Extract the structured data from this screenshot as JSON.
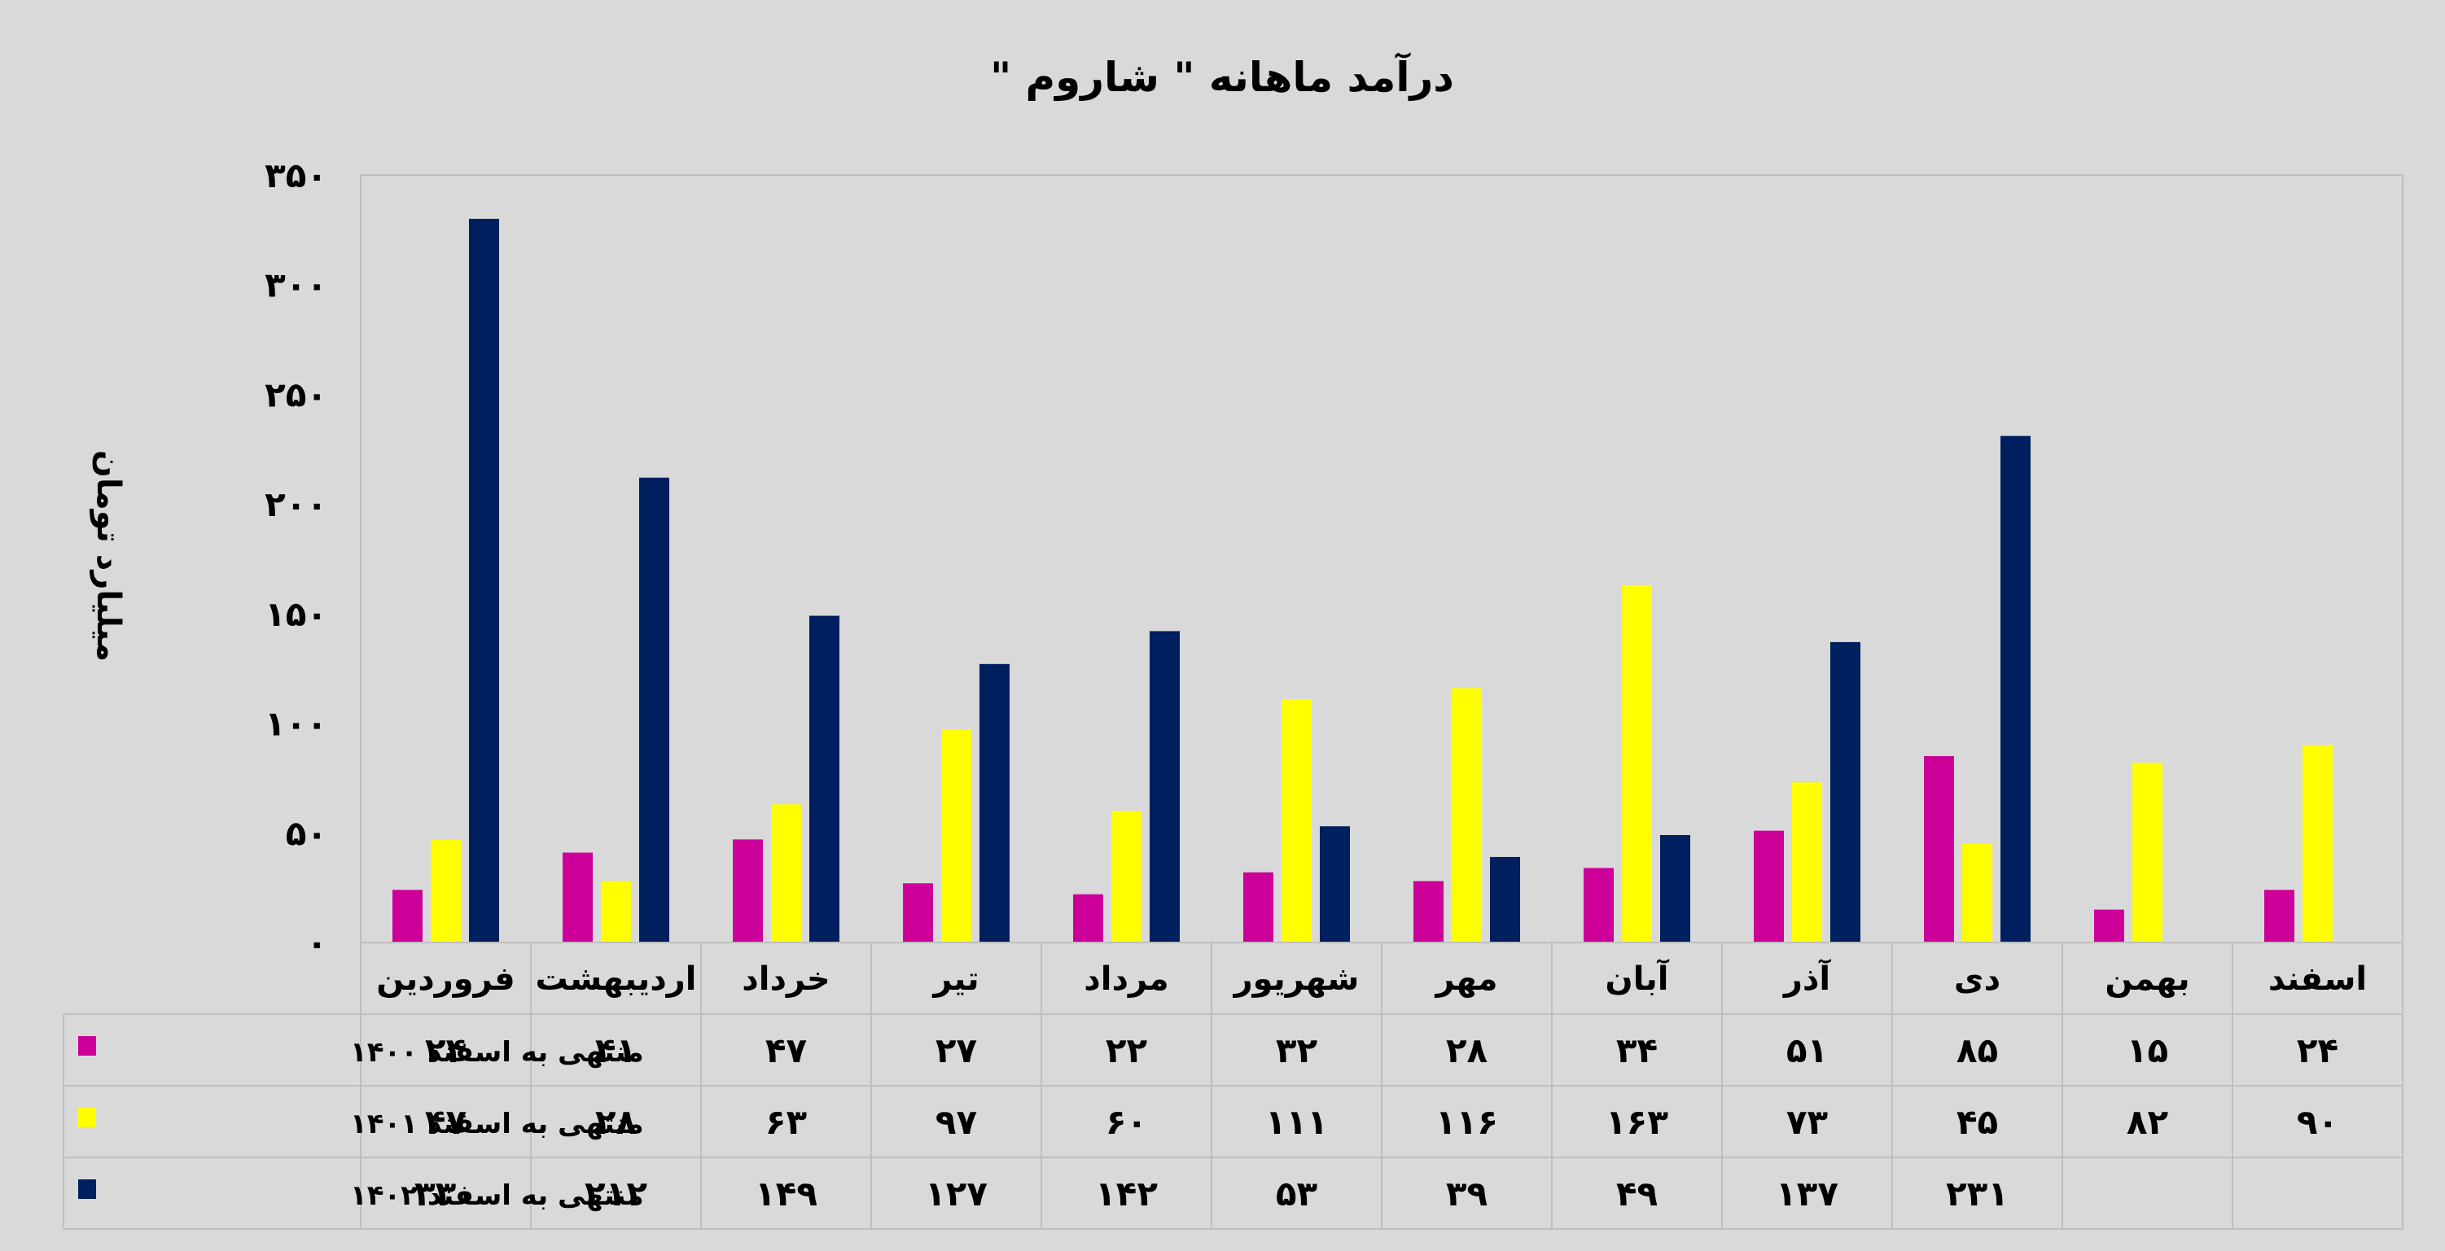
{
  "chart_data": {
    "type": "bar",
    "title": "درآمد ماهانه \" شاروم \"",
    "ylabel": "میلیارد تومان",
    "xlabel": "",
    "ylim": [
      0,
      350
    ],
    "yticks": [
      0,
      50,
      100,
      150,
      200,
      250,
      300,
      350
    ],
    "ytick_labels": [
      "۰",
      "۵۰",
      "۱۰۰",
      "۱۵۰",
      "۲۰۰",
      "۲۵۰",
      "۳۰۰",
      "۳۵۰"
    ],
    "grid": false,
    "legend_placement": "data-table-left",
    "categories": [
      "فروردین",
      "اردیبهشت",
      "خرداد",
      "تیر",
      "مرداد",
      "شهریور",
      "مهر",
      "آبان",
      "آذر",
      "دی",
      "بهمن",
      "اسفند"
    ],
    "series": [
      {
        "name": "منتهی به اسفند ۱۴۰۰",
        "color": "#cc0099",
        "values": [
          24,
          41,
          47,
          27,
          22,
          32,
          28,
          34,
          51,
          85,
          15,
          24
        ],
        "labels": [
          "۲۴",
          "۴۱",
          "۴۷",
          "۲۷",
          "۲۲",
          "۳۲",
          "۲۸",
          "۳۴",
          "۵۱",
          "۸۵",
          "۱۵",
          "۲۴"
        ]
      },
      {
        "name": "منتهی به اسفند ۱۴۰۱",
        "color": "#ffff00",
        "values": [
          47,
          28,
          63,
          97,
          60,
          111,
          116,
          163,
          73,
          45,
          82,
          90
        ],
        "labels": [
          "۴۷",
          "۲۸",
          "۶۳",
          "۹۷",
          "۶۰",
          "۱۱۱",
          "۱۱۶",
          "۱۶۳",
          "۷۳",
          "۴۵",
          "۸۲",
          "۹۰"
        ]
      },
      {
        "name": "منتهی به اسفند ۱۴۰۲",
        "color": "#001f5f",
        "values": [
          330,
          212,
          149,
          127,
          142,
          53,
          39,
          49,
          137,
          231,
          null,
          null
        ],
        "labels": [
          "۳۳۰",
          "۲۱۲",
          "۱۴۹",
          "۱۲۷",
          "۱۴۲",
          "۵۳",
          "۳۹",
          "۴۹",
          "۱۳۷",
          "۲۳۱",
          "",
          ""
        ]
      }
    ]
  }
}
